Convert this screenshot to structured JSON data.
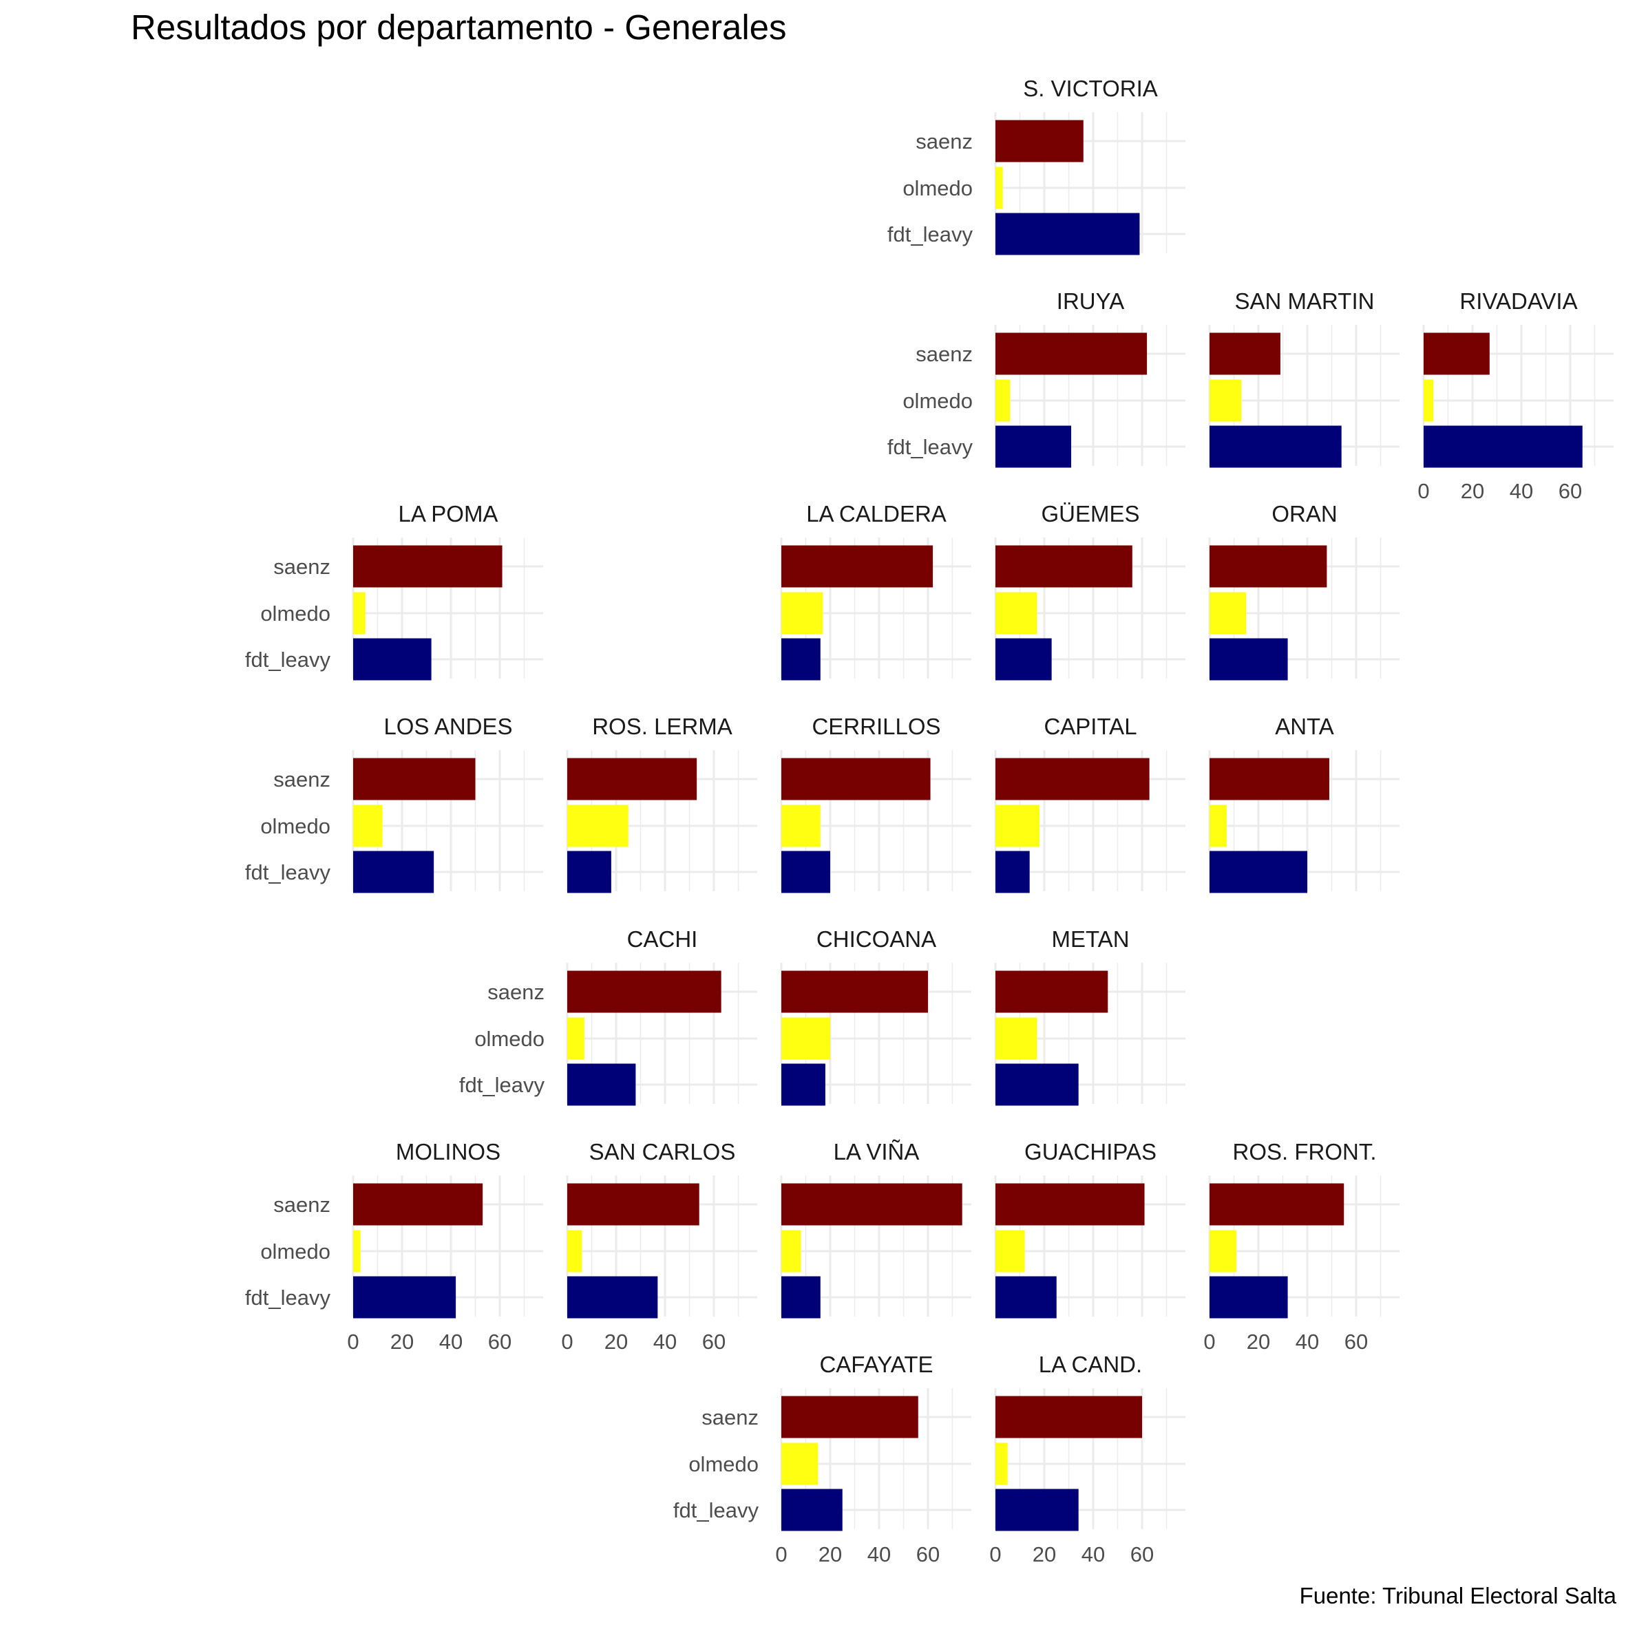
{
  "chart_data": {
    "type": "bar",
    "orientation": "horizontal",
    "layout": "geofacet",
    "title": "Resultados por departamento - Generales",
    "caption": "Fuente: Tribunal Electoral Salta",
    "xlim": [
      0,
      78
    ],
    "xticks": [
      0,
      20,
      40,
      60
    ],
    "grid": true,
    "legend": "none",
    "categories": [
      "saenz",
      "olmedo",
      "fdt_leavy"
    ],
    "colors": {
      "saenz": "#770000",
      "olmedo": "#ffff11",
      "fdt_leavy": "#000077"
    },
    "facets": [
      {
        "name": "S. VICTORIA",
        "row": 0,
        "col": 3,
        "values": {
          "saenz": 36,
          "olmedo": 3,
          "fdt_leavy": 59
        }
      },
      {
        "name": "IRUYA",
        "row": 1,
        "col": 3,
        "values": {
          "saenz": 62,
          "olmedo": 6,
          "fdt_leavy": 31
        }
      },
      {
        "name": "SAN MARTIN",
        "row": 1,
        "col": 4,
        "values": {
          "saenz": 29,
          "olmedo": 13,
          "fdt_leavy": 54
        }
      },
      {
        "name": "RIVADAVIA",
        "row": 1,
        "col": 5,
        "values": {
          "saenz": 27,
          "olmedo": 4,
          "fdt_leavy": 65
        }
      },
      {
        "name": "LA POMA",
        "row": 2,
        "col": 0,
        "values": {
          "saenz": 61,
          "olmedo": 5,
          "fdt_leavy": 32
        }
      },
      {
        "name": "LA CALDERA",
        "row": 2,
        "col": 2,
        "values": {
          "saenz": 62,
          "olmedo": 17,
          "fdt_leavy": 16
        }
      },
      {
        "name": "GÜEMES",
        "row": 2,
        "col": 3,
        "values": {
          "saenz": 56,
          "olmedo": 17,
          "fdt_leavy": 23
        }
      },
      {
        "name": "ORAN",
        "row": 2,
        "col": 4,
        "values": {
          "saenz": 48,
          "olmedo": 15,
          "fdt_leavy": 32
        }
      },
      {
        "name": "LOS ANDES",
        "row": 3,
        "col": 0,
        "values": {
          "saenz": 50,
          "olmedo": 12,
          "fdt_leavy": 33
        }
      },
      {
        "name": "ROS. LERMA",
        "row": 3,
        "col": 1,
        "values": {
          "saenz": 53,
          "olmedo": 25,
          "fdt_leavy": 18
        }
      },
      {
        "name": "CERRILLOS",
        "row": 3,
        "col": 2,
        "values": {
          "saenz": 61,
          "olmedo": 16,
          "fdt_leavy": 20
        }
      },
      {
        "name": "CAPITAL",
        "row": 3,
        "col": 3,
        "values": {
          "saenz": 63,
          "olmedo": 18,
          "fdt_leavy": 14
        }
      },
      {
        "name": "ANTA",
        "row": 3,
        "col": 4,
        "values": {
          "saenz": 49,
          "olmedo": 7,
          "fdt_leavy": 40
        }
      },
      {
        "name": "CACHI",
        "row": 4,
        "col": 1,
        "values": {
          "saenz": 63,
          "olmedo": 7,
          "fdt_leavy": 28
        }
      },
      {
        "name": "CHICOANA",
        "row": 4,
        "col": 2,
        "values": {
          "saenz": 60,
          "olmedo": 20,
          "fdt_leavy": 18
        }
      },
      {
        "name": "METAN",
        "row": 4,
        "col": 3,
        "values": {
          "saenz": 46,
          "olmedo": 17,
          "fdt_leavy": 34
        }
      },
      {
        "name": "MOLINOS",
        "row": 5,
        "col": 0,
        "values": {
          "saenz": 53,
          "olmedo": 3,
          "fdt_leavy": 42
        }
      },
      {
        "name": "SAN CARLOS",
        "row": 5,
        "col": 1,
        "values": {
          "saenz": 54,
          "olmedo": 6,
          "fdt_leavy": 37
        }
      },
      {
        "name": "LA VIÑA",
        "row": 5,
        "col": 2,
        "values": {
          "saenz": 74,
          "olmedo": 8,
          "fdt_leavy": 16
        }
      },
      {
        "name": "GUACHIPAS",
        "row": 5,
        "col": 3,
        "values": {
          "saenz": 61,
          "olmedo": 12,
          "fdt_leavy": 25
        }
      },
      {
        "name": "ROS. FRONT.",
        "row": 5,
        "col": 4,
        "values": {
          "saenz": 55,
          "olmedo": 11,
          "fdt_leavy": 32
        }
      },
      {
        "name": "CAFAYATE",
        "row": 6,
        "col": 2,
        "values": {
          "saenz": 56,
          "olmedo": 15,
          "fdt_leavy": 25
        }
      },
      {
        "name": "LA CAND.",
        "row": 6,
        "col": 3,
        "values": {
          "saenz": 60,
          "olmedo": 5,
          "fdt_leavy": 34
        }
      }
    ]
  }
}
